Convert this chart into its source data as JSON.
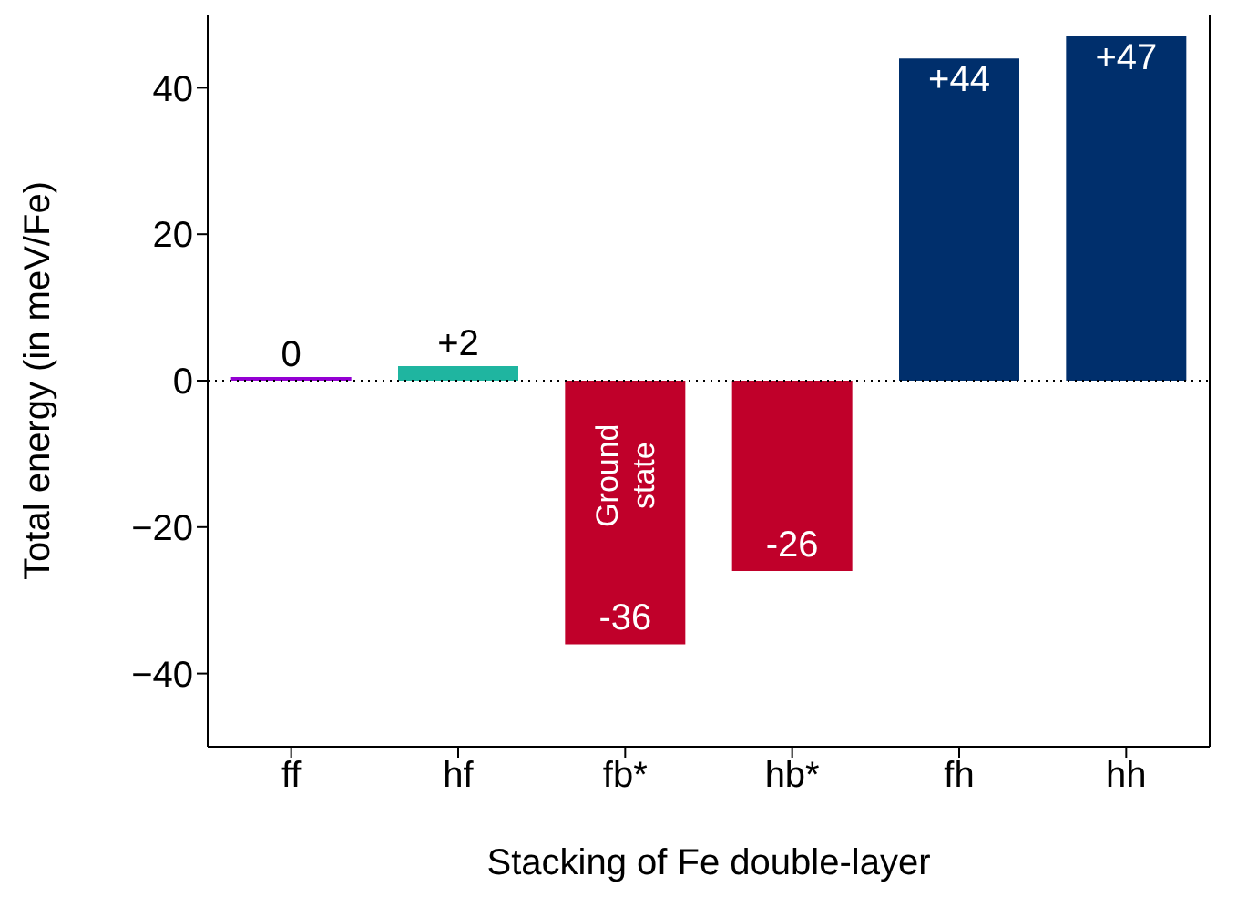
{
  "chart_data": {
    "type": "bar",
    "xlabel": "Stacking of Fe double-layer",
    "ylabel": "Total energy (in meV/Fe)",
    "categories": [
      "ff",
      "hf",
      "fb*",
      "hb*",
      "fh",
      "hh"
    ],
    "values": [
      0,
      2,
      -36,
      -26,
      44,
      47
    ],
    "colors": [
      "#9400d3",
      "#1fb5a0",
      "#c0002a",
      "#c0002a",
      "#002f6c",
      "#002f6c"
    ],
    "value_labels": [
      "0",
      "+2",
      "-36",
      "-26",
      "+44",
      "+47"
    ],
    "ylim": [
      -50,
      50
    ],
    "yticks": [
      {
        "value": -40,
        "label": "−40"
      },
      {
        "value": -20,
        "label": "−20"
      },
      0,
      20,
      40
    ],
    "ref_lines": [
      {
        "axis": "y",
        "value": 0,
        "label": null,
        "color": "#000000",
        "line_style": "dotted"
      }
    ],
    "annotations": [
      "Ground state"
    ],
    "grid": false
  }
}
